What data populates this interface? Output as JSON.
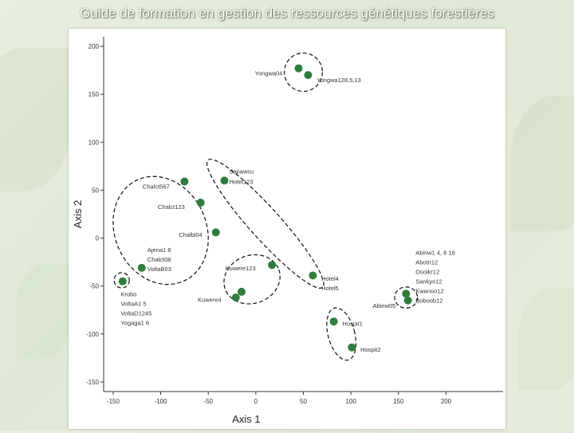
{
  "page": {
    "title": "Guide de formation en gestion des ressources génétiques forestières"
  },
  "colors": {
    "point": "#2e7d3e",
    "axis": "#333333",
    "ellipse": "#111111"
  },
  "chart_data": {
    "type": "scatter",
    "title": "",
    "xlabel": "Axis 1",
    "ylabel": "Axis 2",
    "xlim": [
      -160,
      260
    ],
    "ylim": [
      -160,
      210
    ],
    "xticks": [
      -150,
      -100,
      -50,
      0,
      50,
      100,
      150,
      200
    ],
    "yticks": [
      -150,
      -100,
      -50,
      0,
      50,
      100,
      150,
      200
    ],
    "points": [
      {
        "x": 45,
        "y": 177
      },
      {
        "x": 55,
        "y": 170
      },
      {
        "x": -33,
        "y": 60
      },
      {
        "x": -75,
        "y": 59
      },
      {
        "x": -58,
        "y": 37
      },
      {
        "x": -42,
        "y": 6
      },
      {
        "x": -120,
        "y": -31
      },
      {
        "x": -140,
        "y": -45
      },
      {
        "x": 17,
        "y": -28
      },
      {
        "x": -15,
        "y": -56
      },
      {
        "x": -21,
        "y": -62
      },
      {
        "x": 60,
        "y": -39
      },
      {
        "x": 158,
        "y": -58
      },
      {
        "x": 160,
        "y": -65
      },
      {
        "x": 82,
        "y": -87
      },
      {
        "x": 101,
        "y": -114
      }
    ],
    "labels": [
      {
        "text": "Yongwa04",
        "x": -1,
        "y": 172
      },
      {
        "text": "Yongwa128,5,13",
        "x": 64,
        "y": 165
      },
      {
        "text": "Sapawsu",
        "x": -28,
        "y": 70
      },
      {
        "text": "Hotel123",
        "x": -28,
        "y": 59
      },
      {
        "text": "Chalct567",
        "x": -119,
        "y": 54
      },
      {
        "text": "Chalct123",
        "x": -103,
        "y": 33
      },
      {
        "text": "Chalbl04",
        "x": -81,
        "y": 4
      },
      {
        "text": "Ajena1 8",
        "x": -114,
        "y": -12
      },
      {
        "text": "Chalct08",
        "x": -114,
        "y": -22
      },
      {
        "text": "VoltaB03",
        "x": -114,
        "y": -32
      },
      {
        "text": "Krobo",
        "x": -142,
        "y": -58
      },
      {
        "text": "VoltaA1 5",
        "x": -142,
        "y": -68
      },
      {
        "text": "VoltaD1245",
        "x": -142,
        "y": -78
      },
      {
        "text": "Yogaga1 6",
        "x": -142,
        "y": -88
      },
      {
        "text": "Kuwere123",
        "x": -32,
        "y": -31
      },
      {
        "text": "Kuwere4",
        "x": -61,
        "y": -64
      },
      {
        "text": "Hotel4",
        "x": 69,
        "y": -42
      },
      {
        "text": "Hotel5",
        "x": 69,
        "y": -52
      },
      {
        "text": "Abinw1 4, 6 16",
        "x": 168,
        "y": -15
      },
      {
        "text": "Abotri12",
        "x": 168,
        "y": -25
      },
      {
        "text": "Osoikr12",
        "x": 168,
        "y": -35
      },
      {
        "text": "Sankyo12",
        "x": 168,
        "y": -45
      },
      {
        "text": "Kwanoo12",
        "x": 168,
        "y": -55
      },
      {
        "text": "Boboob12",
        "x": 168,
        "y": -65
      },
      {
        "text": "Abinw05",
        "x": 123,
        "y": -70
      },
      {
        "text": "Hospit1",
        "x": 91,
        "y": -89
      },
      {
        "text": "Hospit2",
        "x": 110,
        "y": -116
      }
    ],
    "clusters": [
      {
        "cx": 50,
        "cy": 173,
        "rx": 20,
        "ry": 20,
        "angle": 0
      },
      {
        "cx": -100,
        "cy": 8,
        "rx": 48,
        "ry": 58,
        "angle": -25
      },
      {
        "cx": 10,
        "cy": 15,
        "rx": 90,
        "ry": 16,
        "angle": 48
      },
      {
        "cx": -141,
        "cy": -44,
        "rx": 8,
        "ry": 8,
        "angle": 0
      },
      {
        "cx": -4,
        "cy": -43,
        "rx": 30,
        "ry": 25,
        "angle": -20
      },
      {
        "cx": 158,
        "cy": -62,
        "rx": 12,
        "ry": 11,
        "angle": 0
      },
      {
        "cx": 90,
        "cy": -100,
        "rx": 14,
        "ry": 28,
        "angle": -15
      }
    ]
  }
}
